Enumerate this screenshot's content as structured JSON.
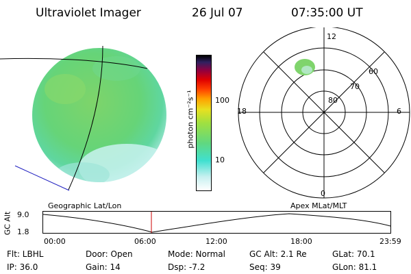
{
  "header": {
    "title": "Ultraviolet Imager",
    "date": "26 Jul 07",
    "time": "07:35:00 UT"
  },
  "colorbar": {
    "unit_label": "photon cm⁻²s⁻¹",
    "tick_labels": [
      "100",
      "10"
    ],
    "gradient_colors": [
      "#ffffff",
      "#c8f0f0",
      "#40e0d0",
      "#60d880",
      "#a0e040",
      "#e8e020",
      "#ffa000",
      "#ff4000",
      "#e00000",
      "#900040",
      "#302060",
      "#000000"
    ]
  },
  "polar_plot": {
    "mlt_labels": {
      "top": "12",
      "bottom": "0",
      "left": "18",
      "right": "6"
    },
    "lat_labels": [
      "60",
      "70",
      "80"
    ]
  },
  "panel_labels": {
    "left": "Geographic Lat/Lon",
    "right": "Apex MLat/MLT"
  },
  "altitude_plot": {
    "axis_label": "GC Alt",
    "y_ticks": [
      "9.0",
      "1.8"
    ],
    "x_ticks": [
      "00:00",
      "06:00",
      "12:00",
      "18:00",
      "23:59"
    ],
    "marker_color": "#cc0000"
  },
  "footer": {
    "filter": "Flt: LBHL",
    "ip": "IP: 36.0",
    "door": "Door: Open",
    "gain": "Gain: 14",
    "mode": "Mode: Normal",
    "dsp": "Dsp:   -7.2",
    "gc_alt": "GC Alt: 2.1 Re",
    "seq": "Seq: 39",
    "glat": "GLat:  70.1",
    "glon": "GLon:  81.1"
  }
}
